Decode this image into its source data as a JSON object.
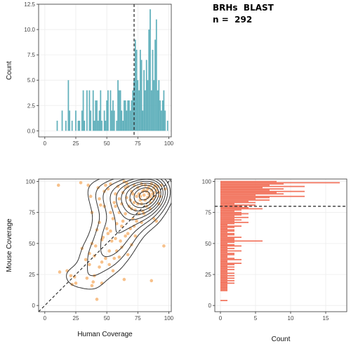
{
  "info": {
    "line1": "BRHs  BLAST",
    "line2": "n =  292"
  },
  "colors": {
    "top_hist": "#62b1bc",
    "right_hist": "#f27660",
    "scatter": "#f3a65a",
    "contour": "#333333",
    "grid": "#ececec",
    "dashed": "#222222"
  },
  "chart_data": [
    {
      "id": "human-coverage-histogram",
      "type": "bar",
      "title": "",
      "xlabel": "",
      "ylabel": "Count",
      "xlim": [
        -5,
        102
      ],
      "ylim": [
        -0.6,
        12.5
      ],
      "xticks": [
        0,
        25,
        50,
        75,
        100
      ],
      "yticks": [
        0.0,
        2.5,
        5.0,
        7.5,
        10.0,
        12.5
      ],
      "ytick_labels": [
        "0.0",
        "2.5",
        "5.0",
        "7.5",
        "10.0",
        "12.5"
      ],
      "grid": true,
      "bin_width": 1,
      "reference_line_x": 72,
      "bins_x": [
        10,
        11,
        12,
        13,
        14,
        15,
        16,
        17,
        18,
        19,
        20,
        21,
        22,
        23,
        24,
        25,
        26,
        27,
        28,
        29,
        30,
        31,
        32,
        33,
        34,
        35,
        36,
        37,
        38,
        39,
        40,
        41,
        42,
        43,
        44,
        45,
        46,
        47,
        48,
        49,
        50,
        51,
        52,
        53,
        54,
        55,
        56,
        57,
        58,
        59,
        60,
        61,
        62,
        63,
        64,
        65,
        66,
        67,
        68,
        69,
        70,
        71,
        72,
        73,
        74,
        75,
        76,
        77,
        78,
        79,
        80,
        81,
        82,
        83,
        84,
        85,
        86,
        87,
        88,
        89,
        90,
        91,
        92,
        93,
        94,
        95,
        96,
        97,
        98,
        99
      ],
      "values": [
        1,
        0,
        0,
        0,
        2,
        0,
        0,
        1,
        0,
        5,
        2,
        0,
        1,
        0,
        0,
        2,
        0,
        1,
        1,
        0,
        2,
        4,
        1,
        0,
        4,
        0,
        4,
        2,
        0,
        4,
        1,
        3,
        3,
        1,
        2,
        4,
        1,
        0,
        2,
        1,
        3,
        4,
        0,
        4,
        2,
        3,
        2,
        0,
        1,
        5,
        4,
        4,
        2,
        1,
        3,
        3,
        2,
        3,
        3,
        2,
        3,
        4,
        5,
        9,
        8,
        5,
        4,
        8,
        7,
        2,
        6,
        4,
        7,
        5,
        10,
        12,
        4,
        8,
        5,
        9,
        11,
        4,
        5,
        3,
        2,
        3,
        4,
        2,
        0,
        1
      ]
    },
    {
      "id": "coverage-scatter-density",
      "type": "scatter",
      "title": "",
      "xlabel": "Human  Coverage",
      "ylabel": "Mouse  Coverage",
      "xlim": [
        -5,
        102
      ],
      "ylim": [
        -5,
        102
      ],
      "xticks": [
        0,
        25,
        50,
        75,
        100
      ],
      "yticks": [
        0,
        25,
        50,
        75,
        100
      ],
      "grid": true,
      "identity_line": true,
      "points": [
        [
          11,
          97
        ],
        [
          18,
          28
        ],
        [
          21,
          24
        ],
        [
          22,
          17
        ],
        [
          24,
          23
        ],
        [
          25,
          18
        ],
        [
          29,
          99
        ],
        [
          33,
          37
        ],
        [
          34,
          22
        ],
        [
          35,
          97
        ],
        [
          36,
          33
        ],
        [
          37,
          88
        ],
        [
          38,
          16
        ],
        [
          38,
          50
        ],
        [
          39,
          19
        ],
        [
          40,
          24
        ],
        [
          40,
          40
        ],
        [
          41,
          48
        ],
        [
          42,
          61
        ],
        [
          42,
          5
        ],
        [
          43,
          95
        ],
        [
          44,
          31
        ],
        [
          44,
          67
        ],
        [
          45,
          81
        ],
        [
          46,
          53
        ],
        [
          46,
          35
        ],
        [
          48,
          92
        ],
        [
          48,
          80
        ],
        [
          49,
          38
        ],
        [
          49,
          97
        ],
        [
          50,
          62
        ],
        [
          51,
          58
        ],
        [
          51,
          94
        ],
        [
          52,
          44
        ],
        [
          52,
          33
        ],
        [
          53,
          75
        ],
        [
          53,
          60
        ],
        [
          54,
          52
        ],
        [
          55,
          70
        ],
        [
          55,
          28
        ],
        [
          56,
          83
        ],
        [
          57,
          90
        ],
        [
          57,
          54
        ],
        [
          58,
          44
        ],
        [
          58,
          66
        ],
        [
          59,
          96
        ],
        [
          60,
          75
        ],
        [
          60,
          39
        ],
        [
          61,
          52
        ],
        [
          62,
          82
        ],
        [
          62,
          47
        ],
        [
          63,
          68
        ],
        [
          63,
          91
        ],
        [
          64,
          100
        ],
        [
          64,
          21
        ],
        [
          65,
          56
        ],
        [
          65,
          74
        ],
        [
          66,
          87
        ],
        [
          67,
          58
        ],
        [
          67,
          41
        ],
        [
          67,
          96
        ],
        [
          68,
          80
        ],
        [
          69,
          85
        ],
        [
          69,
          62
        ],
        [
          70,
          78
        ],
        [
          70,
          92
        ],
        [
          71,
          70
        ],
        [
          71,
          90
        ],
        [
          72,
          83
        ],
        [
          72,
          97
        ],
        [
          73,
          77
        ],
        [
          73,
          56
        ],
        [
          74,
          68
        ],
        [
          74,
          88
        ],
        [
          75,
          95
        ],
        [
          75,
          82
        ],
        [
          76,
          74
        ],
        [
          76,
          90
        ],
        [
          77,
          88
        ],
        [
          77,
          85
        ],
        [
          78,
          98
        ],
        [
          78,
          82
        ],
        [
          79,
          92
        ],
        [
          79,
          76
        ],
        [
          80,
          89
        ],
        [
          80,
          93
        ],
        [
          81,
          85
        ],
        [
          81,
          97
        ],
        [
          82,
          80
        ],
        [
          82,
          92
        ],
        [
          83,
          94
        ],
        [
          83,
          87
        ],
        [
          84,
          90
        ],
        [
          84,
          96
        ],
        [
          85,
          88
        ],
        [
          85,
          83
        ],
        [
          86,
          93
        ],
        [
          86,
          98
        ],
        [
          87,
          90
        ],
        [
          87,
          86
        ],
        [
          88,
          95
        ],
        [
          88,
          91
        ],
        [
          89,
          88
        ],
        [
          89,
          97
        ],
        [
          90,
          93
        ],
        [
          90,
          68
        ],
        [
          91,
          96
        ],
        [
          92,
          91
        ],
        [
          93,
          88
        ],
        [
          86,
          20
        ],
        [
          12,
          27
        ],
        [
          96,
          48
        ],
        [
          97,
          94
        ],
        [
          94,
          97
        ],
        [
          88,
          70
        ],
        [
          62,
          64
        ],
        [
          70,
          49
        ],
        [
          56,
          38
        ],
        [
          46,
          18
        ],
        [
          30,
          46
        ],
        [
          44,
          86
        ],
        [
          60,
          86
        ],
        [
          65,
          95
        ],
        [
          53,
          98
        ],
        [
          36,
          42
        ],
        [
          47,
          55
        ],
        [
          38,
          75
        ],
        [
          57,
          80
        ],
        [
          72,
          64
        ],
        [
          80,
          74
        ],
        [
          85,
          78
        ],
        [
          92,
          82
        ],
        [
          66,
          99
        ],
        [
          78,
          67
        ]
      ]
    },
    {
      "id": "mouse-coverage-histogram",
      "type": "bar",
      "orientation": "horizontal",
      "title": "",
      "xlabel": "Count",
      "ylabel": "",
      "xlim": [
        -0.8,
        18
      ],
      "ylim": [
        -5,
        102
      ],
      "xticks": [
        0,
        5,
        10,
        15
      ],
      "yticks": [
        0,
        25,
        50,
        75,
        100
      ],
      "grid": true,
      "bin_width": 1,
      "reference_line_y": 80,
      "bins_y": [
        4,
        12,
        13,
        14,
        15,
        16,
        17,
        18,
        19,
        20,
        21,
        22,
        23,
        24,
        25,
        26,
        27,
        28,
        29,
        30,
        31,
        32,
        33,
        34,
        35,
        36,
        37,
        38,
        39,
        40,
        41,
        42,
        43,
        44,
        45,
        46,
        47,
        48,
        49,
        50,
        51,
        52,
        53,
        54,
        55,
        56,
        57,
        58,
        59,
        60,
        61,
        62,
        63,
        64,
        65,
        66,
        67,
        68,
        69,
        70,
        71,
        72,
        73,
        74,
        75,
        76,
        77,
        78,
        79,
        80,
        81,
        82,
        83,
        84,
        85,
        86,
        87,
        88,
        89,
        90,
        91,
        92,
        93,
        94,
        95,
        96,
        97,
        98,
        99,
        100
      ],
      "values": [
        1,
        1,
        1,
        1,
        1,
        1,
        1,
        2,
        1,
        2,
        1,
        2,
        1,
        2,
        1,
        2,
        1,
        1,
        2,
        1,
        2,
        1,
        2,
        3,
        1,
        1,
        3,
        2,
        1,
        1,
        2,
        2,
        1,
        3,
        1,
        2,
        1,
        3,
        2,
        1,
        2,
        6,
        2,
        2,
        3,
        1,
        2,
        2,
        1,
        2,
        2,
        1,
        2,
        3,
        1,
        2,
        4,
        2,
        3,
        2,
        4,
        2,
        3,
        4,
        3,
        2,
        3,
        6,
        4,
        3,
        5,
        2,
        5,
        4,
        7,
        5,
        7,
        12,
        5,
        9,
        8,
        12,
        7,
        9,
        6,
        12,
        7,
        9,
        17,
        8
      ]
    }
  ]
}
